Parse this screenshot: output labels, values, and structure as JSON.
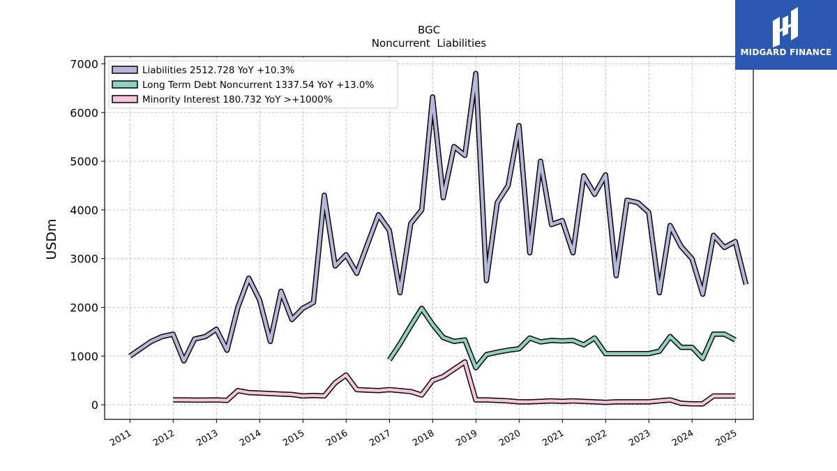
{
  "brand": {
    "name": "MIDGARD FINANCE",
    "background": "#2b58b0"
  },
  "chart_data": {
    "type": "line",
    "title": "BGC",
    "subtitle": "Noncurrent  Liabilities",
    "xlabel": "",
    "ylabel": "USDm",
    "xlim": [
      "2010-06-01",
      "2025-06-01"
    ],
    "ylim": [
      -300,
      7150
    ],
    "yticks": [
      0,
      1000,
      2000,
      3000,
      4000,
      5000,
      6000,
      7000
    ],
    "xtick_labels": [
      "2011",
      "2012",
      "2013",
      "2014",
      "2015",
      "2016",
      "2017",
      "2018",
      "2019",
      "2020",
      "2021",
      "2022",
      "2023",
      "2024",
      "2025"
    ],
    "grid": true,
    "legend_position": "top-left",
    "series": [
      {
        "name": "Liabilities  2512.728 YoY +10.3%",
        "color": "#b7b7d9",
        "points": [
          [
            "2010-12-31",
            1000
          ],
          [
            "2011-03-31",
            1150
          ],
          [
            "2011-06-30",
            1300
          ],
          [
            "2011-09-30",
            1400
          ],
          [
            "2011-12-31",
            1450
          ],
          [
            "2012-03-31",
            900
          ],
          [
            "2012-06-30",
            1350
          ],
          [
            "2012-09-30",
            1400
          ],
          [
            "2012-12-31",
            1550
          ],
          [
            "2013-03-31",
            1120
          ],
          [
            "2013-06-30",
            2000
          ],
          [
            "2013-09-30",
            2600
          ],
          [
            "2013-12-31",
            2150
          ],
          [
            "2014-03-31",
            1300
          ],
          [
            "2014-06-30",
            2330
          ],
          [
            "2014-09-30",
            1750
          ],
          [
            "2014-12-31",
            1980
          ],
          [
            "2015-03-31",
            2100
          ],
          [
            "2015-06-30",
            4300
          ],
          [
            "2015-09-30",
            2850
          ],
          [
            "2015-12-31",
            3080
          ],
          [
            "2016-03-31",
            2700
          ],
          [
            "2016-06-30",
            3300
          ],
          [
            "2016-09-30",
            3900
          ],
          [
            "2016-12-31",
            3580
          ],
          [
            "2017-03-31",
            2300
          ],
          [
            "2017-06-30",
            3720
          ],
          [
            "2017-09-30",
            4000
          ],
          [
            "2017-12-31",
            6320
          ],
          [
            "2018-03-31",
            4250
          ],
          [
            "2018-06-30",
            5300
          ],
          [
            "2018-09-30",
            5120
          ],
          [
            "2018-12-31",
            6800
          ],
          [
            "2019-03-31",
            2550
          ],
          [
            "2019-06-30",
            4150
          ],
          [
            "2019-09-30",
            4500
          ],
          [
            "2019-12-31",
            5730
          ],
          [
            "2020-03-31",
            3120
          ],
          [
            "2020-06-30",
            5000
          ],
          [
            "2020-09-30",
            3700
          ],
          [
            "2020-12-31",
            3780
          ],
          [
            "2021-03-31",
            3120
          ],
          [
            "2021-06-30",
            4700
          ],
          [
            "2021-09-30",
            4320
          ],
          [
            "2021-12-31",
            4720
          ],
          [
            "2022-03-31",
            2650
          ],
          [
            "2022-06-30",
            4200
          ],
          [
            "2022-09-30",
            4150
          ],
          [
            "2022-12-31",
            3950
          ],
          [
            "2023-03-31",
            2300
          ],
          [
            "2023-06-30",
            3680
          ],
          [
            "2023-09-30",
            3250
          ],
          [
            "2023-12-31",
            3000
          ],
          [
            "2024-03-31",
            2270
          ],
          [
            "2024-06-30",
            3480
          ],
          [
            "2024-09-30",
            3230
          ],
          [
            "2024-12-31",
            3350
          ],
          [
            "2025-03-31",
            2470
          ]
        ]
      },
      {
        "name": "Long Term Debt Noncurrent  1337.54 YoY +13.0%",
        "color": "#8fd1c0",
        "points": [
          [
            "2016-12-31",
            920
          ],
          [
            "2017-03-31",
            1250
          ],
          [
            "2017-06-30",
            1620
          ],
          [
            "2017-09-30",
            1980
          ],
          [
            "2017-12-31",
            1650
          ],
          [
            "2018-03-31",
            1380
          ],
          [
            "2018-06-30",
            1300
          ],
          [
            "2018-09-30",
            1330
          ],
          [
            "2018-12-31",
            760
          ],
          [
            "2019-03-31",
            1030
          ],
          [
            "2019-06-30",
            1080
          ],
          [
            "2019-09-30",
            1120
          ],
          [
            "2019-12-31",
            1150
          ],
          [
            "2020-03-31",
            1370
          ],
          [
            "2020-06-30",
            1290
          ],
          [
            "2020-09-30",
            1320
          ],
          [
            "2020-12-31",
            1310
          ],
          [
            "2021-03-31",
            1320
          ],
          [
            "2021-06-30",
            1230
          ],
          [
            "2021-09-30",
            1370
          ],
          [
            "2021-12-31",
            1050
          ],
          [
            "2022-03-31",
            1050
          ],
          [
            "2022-06-30",
            1050
          ],
          [
            "2022-09-30",
            1050
          ],
          [
            "2022-12-31",
            1050
          ],
          [
            "2023-03-31",
            1100
          ],
          [
            "2023-06-30",
            1400
          ],
          [
            "2023-09-30",
            1180
          ],
          [
            "2023-12-31",
            1180
          ],
          [
            "2024-03-31",
            950
          ],
          [
            "2024-06-30",
            1450
          ],
          [
            "2024-09-30",
            1450
          ],
          [
            "2024-12-31",
            1330
          ]
        ]
      },
      {
        "name": "Minority Interest  180.732 YoY >+1000%",
        "color": "#f7c6dd",
        "points": [
          [
            "2011-12-31",
            100
          ],
          [
            "2012-03-31",
            100
          ],
          [
            "2012-06-30",
            95
          ],
          [
            "2012-09-30",
            95
          ],
          [
            "2012-12-31",
            100
          ],
          [
            "2013-03-31",
            90
          ],
          [
            "2013-06-30",
            290
          ],
          [
            "2013-09-30",
            250
          ],
          [
            "2013-12-31",
            240
          ],
          [
            "2014-03-31",
            230
          ],
          [
            "2014-06-30",
            220
          ],
          [
            "2014-09-30",
            210
          ],
          [
            "2014-12-31",
            180
          ],
          [
            "2015-03-31",
            190
          ],
          [
            "2015-06-30",
            180
          ],
          [
            "2015-09-30",
            450
          ],
          [
            "2015-12-31",
            610
          ],
          [
            "2016-03-31",
            310
          ],
          [
            "2016-06-30",
            300
          ],
          [
            "2016-09-30",
            290
          ],
          [
            "2016-12-31",
            310
          ],
          [
            "2017-03-31",
            290
          ],
          [
            "2017-06-30",
            270
          ],
          [
            "2017-09-30",
            200
          ],
          [
            "2017-12-31",
            500
          ],
          [
            "2018-03-31",
            580
          ],
          [
            "2018-06-30",
            730
          ],
          [
            "2018-09-30",
            880
          ],
          [
            "2018-12-31",
            100
          ],
          [
            "2019-03-31",
            100
          ],
          [
            "2019-06-30",
            90
          ],
          [
            "2019-09-30",
            80
          ],
          [
            "2019-12-31",
            60
          ],
          [
            "2020-03-31",
            60
          ],
          [
            "2020-06-30",
            70
          ],
          [
            "2020-09-30",
            80
          ],
          [
            "2020-12-31",
            70
          ],
          [
            "2021-03-31",
            80
          ],
          [
            "2021-06-30",
            70
          ],
          [
            "2021-09-30",
            60
          ],
          [
            "2021-12-31",
            50
          ],
          [
            "2022-03-31",
            60
          ],
          [
            "2022-06-30",
            60
          ],
          [
            "2022-09-30",
            60
          ],
          [
            "2022-12-31",
            60
          ],
          [
            "2023-03-31",
            80
          ],
          [
            "2023-06-30",
            100
          ],
          [
            "2023-09-30",
            30
          ],
          [
            "2023-12-31",
            20
          ],
          [
            "2024-03-31",
            20
          ],
          [
            "2024-06-30",
            180
          ],
          [
            "2024-09-30",
            180
          ],
          [
            "2024-12-31",
            180
          ]
        ]
      }
    ]
  }
}
